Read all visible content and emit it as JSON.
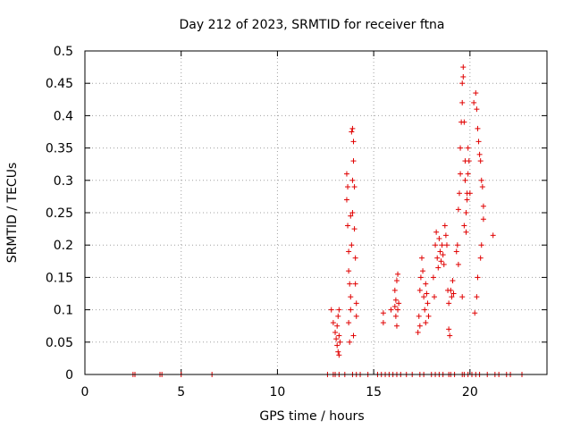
{
  "chart_data": {
    "type": "scatter",
    "title": "Day 212 of 2023, SRMTID for receiver ftna",
    "xlabel": "GPS time / hours",
    "ylabel": "SRMTID / TECUs",
    "xlim": [
      0,
      24
    ],
    "ylim": [
      0,
      0.5
    ],
    "xticks": [
      "0",
      "5",
      "10",
      "15",
      "20"
    ],
    "yticks": [
      "0",
      "0.05",
      "0.1",
      "0.15",
      "0.2",
      "0.25",
      "0.3",
      "0.35",
      "0.4",
      "0.45",
      "0.5"
    ],
    "grid": true,
    "legend": "none",
    "marker": "plus",
    "color": "#e00000",
    "series": [
      {
        "points": [
          [
            2.5,
            0
          ],
          [
            2.6,
            0
          ],
          [
            3.9,
            0
          ],
          [
            4.0,
            0
          ],
          [
            5.0,
            0
          ],
          [
            6.6,
            0
          ],
          [
            12.6,
            0
          ],
          [
            12.9,
            0
          ],
          [
            13.0,
            0
          ],
          [
            13.2,
            0
          ],
          [
            13.5,
            0
          ],
          [
            13.9,
            0
          ],
          [
            14.1,
            0
          ],
          [
            14.3,
            0
          ],
          [
            14.7,
            0
          ],
          [
            15.2,
            0
          ],
          [
            15.4,
            0
          ],
          [
            15.6,
            0
          ],
          [
            15.8,
            0
          ],
          [
            16.0,
            0
          ],
          [
            16.2,
            0
          ],
          [
            16.4,
            0
          ],
          [
            16.7,
            0
          ],
          [
            17.0,
            0
          ],
          [
            17.4,
            0
          ],
          [
            17.6,
            0
          ],
          [
            18.0,
            0
          ],
          [
            18.2,
            0
          ],
          [
            18.4,
            0
          ],
          [
            18.6,
            0
          ],
          [
            18.9,
            0
          ],
          [
            19.0,
            0
          ],
          [
            19.2,
            0
          ],
          [
            19.6,
            0
          ],
          [
            19.7,
            0
          ],
          [
            19.9,
            0
          ],
          [
            20.1,
            0
          ],
          [
            20.3,
            0
          ],
          [
            20.5,
            0
          ],
          [
            20.9,
            0
          ],
          [
            21.3,
            0
          ],
          [
            21.5,
            0
          ],
          [
            21.9,
            0
          ],
          [
            22.1,
            0
          ],
          [
            22.7,
            0
          ],
          [
            12.8,
            0.1
          ],
          [
            12.9,
            0.08
          ],
          [
            13.0,
            0.065
          ],
          [
            13.05,
            0.055
          ],
          [
            13.1,
            0.045
          ],
          [
            13.15,
            0.035
          ],
          [
            13.2,
            0.03
          ],
          [
            13.1,
            0.075
          ],
          [
            13.2,
            0.06
          ],
          [
            13.25,
            0.05
          ],
          [
            13.2,
            0.1
          ],
          [
            13.15,
            0.09
          ],
          [
            13.6,
            0.31
          ],
          [
            13.6,
            0.27
          ],
          [
            13.65,
            0.23
          ],
          [
            13.7,
            0.19
          ],
          [
            13.7,
            0.16
          ],
          [
            13.75,
            0.14
          ],
          [
            13.8,
            0.12
          ],
          [
            13.7,
            0.08
          ],
          [
            13.75,
            0.05
          ],
          [
            13.8,
            0.1
          ],
          [
            13.85,
            0.2
          ],
          [
            13.9,
            0.25
          ],
          [
            13.9,
            0.3
          ],
          [
            13.9,
            0.38
          ],
          [
            13.85,
            0.375
          ],
          [
            13.95,
            0.36
          ],
          [
            13.95,
            0.33
          ],
          [
            14.0,
            0.29
          ],
          [
            14.0,
            0.225
          ],
          [
            14.05,
            0.18
          ],
          [
            14.05,
            0.14
          ],
          [
            14.1,
            0.11
          ],
          [
            14.1,
            0.09
          ],
          [
            13.95,
            0.06
          ],
          [
            13.65,
            0.29
          ],
          [
            13.8,
            0.245
          ],
          [
            15.5,
            0.095
          ],
          [
            15.5,
            0.08
          ],
          [
            15.9,
            0.1
          ],
          [
            16.1,
            0.13
          ],
          [
            16.15,
            0.115
          ],
          [
            16.2,
            0.145
          ],
          [
            16.25,
            0.155
          ],
          [
            16.15,
            0.09
          ],
          [
            16.2,
            0.075
          ],
          [
            16.1,
            0.105
          ],
          [
            16.25,
            0.1
          ],
          [
            16.3,
            0.11
          ],
          [
            17.3,
            0.065
          ],
          [
            17.35,
            0.09
          ],
          [
            17.4,
            0.13
          ],
          [
            17.45,
            0.15
          ],
          [
            17.5,
            0.18
          ],
          [
            17.55,
            0.16
          ],
          [
            17.6,
            0.12
          ],
          [
            17.65,
            0.1
          ],
          [
            17.7,
            0.14
          ],
          [
            17.75,
            0.125
          ],
          [
            17.8,
            0.11
          ],
          [
            17.85,
            0.09
          ],
          [
            17.4,
            0.075
          ],
          [
            17.7,
            0.08
          ],
          [
            18.1,
            0.15
          ],
          [
            18.15,
            0.12
          ],
          [
            18.2,
            0.2
          ],
          [
            18.25,
            0.22
          ],
          [
            18.3,
            0.18
          ],
          [
            18.35,
            0.165
          ],
          [
            18.4,
            0.21
          ],
          [
            18.45,
            0.19
          ],
          [
            18.5,
            0.175
          ],
          [
            18.55,
            0.2
          ],
          [
            18.6,
            0.185
          ],
          [
            18.65,
            0.17
          ],
          [
            18.7,
            0.23
          ],
          [
            18.75,
            0.215
          ],
          [
            18.8,
            0.2
          ],
          [
            18.85,
            0.13
          ],
          [
            18.9,
            0.07
          ],
          [
            18.9,
            0.11
          ],
          [
            18.95,
            0.06
          ],
          [
            19.0,
            0.13
          ],
          [
            19.05,
            0.12
          ],
          [
            19.1,
            0.145
          ],
          [
            19.15,
            0.125
          ],
          [
            19.3,
            0.19
          ],
          [
            19.35,
            0.2
          ],
          [
            19.4,
            0.17
          ],
          [
            19.4,
            0.255
          ],
          [
            19.45,
            0.28
          ],
          [
            19.5,
            0.31
          ],
          [
            19.5,
            0.35
          ],
          [
            19.55,
            0.39
          ],
          [
            19.6,
            0.42
          ],
          [
            19.65,
            0.46
          ],
          [
            19.65,
            0.475
          ],
          [
            19.6,
            0.45
          ],
          [
            19.7,
            0.39
          ],
          [
            19.75,
            0.33
          ],
          [
            19.75,
            0.3
          ],
          [
            19.8,
            0.25
          ],
          [
            19.8,
            0.22
          ],
          [
            19.85,
            0.28
          ],
          [
            19.9,
            0.31
          ],
          [
            19.9,
            0.35
          ],
          [
            19.95,
            0.33
          ],
          [
            20.0,
            0.28
          ],
          [
            19.85,
            0.27
          ],
          [
            19.7,
            0.23
          ],
          [
            19.6,
            0.12
          ],
          [
            20.2,
            0.42
          ],
          [
            20.3,
            0.435
          ],
          [
            20.35,
            0.41
          ],
          [
            20.4,
            0.38
          ],
          [
            20.45,
            0.36
          ],
          [
            20.5,
            0.34
          ],
          [
            20.55,
            0.33
          ],
          [
            20.6,
            0.3
          ],
          [
            20.65,
            0.29
          ],
          [
            20.7,
            0.26
          ],
          [
            20.7,
            0.24
          ],
          [
            20.6,
            0.2
          ],
          [
            20.55,
            0.18
          ],
          [
            20.4,
            0.15
          ],
          [
            20.35,
            0.12
          ],
          [
            20.25,
            0.095
          ],
          [
            21.2,
            0.215
          ]
        ]
      }
    ]
  }
}
